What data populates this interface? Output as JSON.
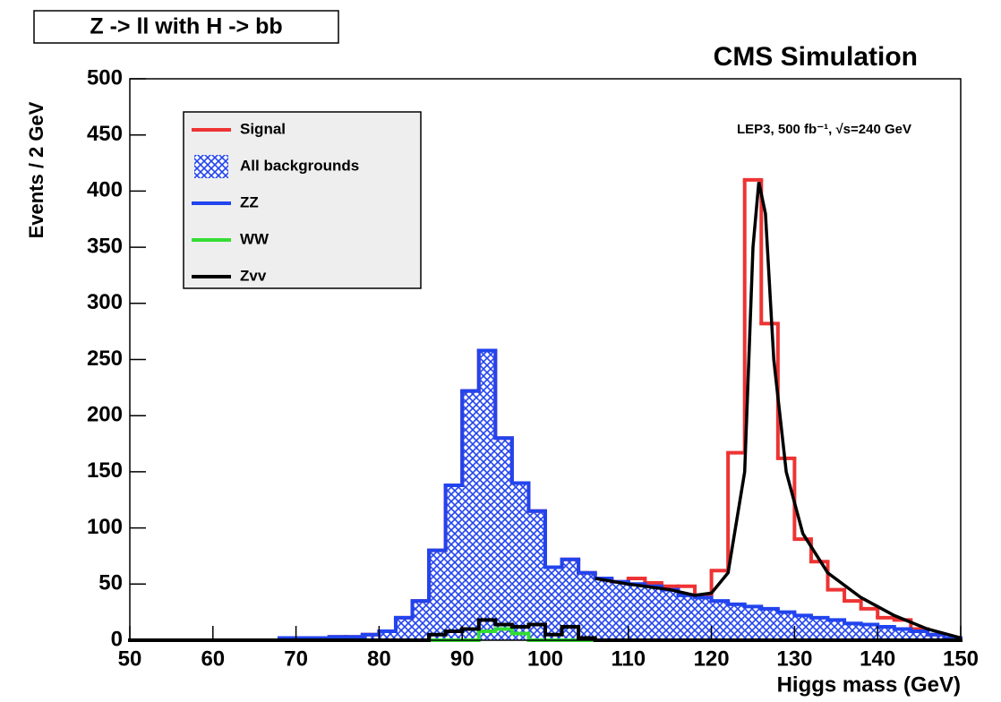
{
  "chart_data": {
    "type": "histogram",
    "title": "Z -> ll with H -> bb",
    "subtitle": "CMS Simulation",
    "annotation": "LEP3, 500 fb⁻¹, √s=240 GeV",
    "xlabel": "Higgs mass (GeV)",
    "ylabel": "Events / 2 GeV",
    "xlim": [
      50,
      150
    ],
    "ylim": [
      0,
      500
    ],
    "xticks": [
      50,
      60,
      70,
      80,
      90,
      100,
      110,
      120,
      130,
      140,
      150
    ],
    "yticks": [
      0,
      50,
      100,
      150,
      200,
      250,
      300,
      350,
      400,
      450,
      500
    ],
    "legend": "top-left",
    "bins": [
      50,
      52,
      54,
      56,
      58,
      60,
      62,
      64,
      66,
      68,
      70,
      72,
      74,
      76,
      78,
      80,
      82,
      84,
      86,
      88,
      90,
      92,
      94,
      96,
      98,
      100,
      102,
      104,
      106,
      108,
      110,
      112,
      114,
      116,
      118,
      120,
      122,
      124,
      126,
      128,
      130,
      132,
      134,
      136,
      138,
      140,
      142,
      144,
      146,
      148,
      150
    ],
    "series": [
      {
        "name": "Signal",
        "color": "#ee3333",
        "style": "step",
        "values": [
          0,
          0,
          0,
          0,
          0,
          0,
          0,
          0,
          0,
          0,
          0,
          0,
          0,
          0,
          0,
          0,
          0,
          0,
          0,
          0,
          0,
          0,
          0,
          0,
          0,
          0,
          0,
          0,
          0,
          0,
          5,
          3,
          3,
          8,
          2,
          27,
          135,
          380,
          254,
          137,
          68,
          50,
          27,
          20,
          14,
          8,
          8,
          2,
          0,
          0
        ]
      },
      {
        "name": "All backgrounds",
        "color": "#2244ee",
        "style": "hatch",
        "values": [
          0,
          0,
          0,
          0,
          0,
          0,
          0,
          0,
          0,
          2,
          2,
          2,
          3,
          3,
          5,
          8,
          20,
          35,
          80,
          138,
          222,
          258,
          180,
          140,
          115,
          65,
          72,
          60,
          55,
          52,
          50,
          48,
          45,
          40,
          38,
          35,
          32,
          30,
          28,
          25,
          22,
          20,
          18,
          15,
          14,
          12,
          10,
          8,
          5,
          2
        ]
      },
      {
        "name": "ZZ",
        "color": "#2244ee",
        "style": "step",
        "values": [
          0,
          0,
          0,
          0,
          0,
          0,
          0,
          0,
          0,
          2,
          2,
          2,
          3,
          3,
          5,
          8,
          20,
          35,
          80,
          138,
          222,
          258,
          180,
          140,
          115,
          65,
          72,
          60,
          55,
          52,
          50,
          48,
          45,
          40,
          38,
          35,
          32,
          30,
          28,
          25,
          22,
          20,
          18,
          15,
          14,
          12,
          10,
          8,
          5,
          2
        ]
      },
      {
        "name": "WW",
        "color": "#33dd33",
        "style": "step",
        "values": [
          0,
          0,
          0,
          0,
          0,
          0,
          0,
          0,
          0,
          0,
          0,
          0,
          0,
          0,
          0,
          0,
          0,
          0,
          0,
          0,
          0,
          8,
          10,
          6,
          0,
          0,
          0,
          0,
          0,
          0,
          0,
          0,
          0,
          0,
          0,
          0,
          0,
          0,
          0,
          0,
          0,
          0,
          0,
          0,
          0,
          0,
          0,
          0,
          0,
          0
        ]
      },
      {
        "name": "Zvv",
        "color": "#000000",
        "style": "step",
        "values": [
          0,
          0,
          0,
          0,
          0,
          0,
          0,
          0,
          0,
          0,
          0,
          0,
          0,
          0,
          0,
          0,
          0,
          0,
          5,
          8,
          10,
          18,
          14,
          12,
          14,
          5,
          12,
          2,
          0,
          0,
          0,
          0,
          0,
          0,
          0,
          0,
          0,
          0,
          0,
          0,
          0,
          0,
          0,
          0,
          0,
          0,
          0,
          0,
          0,
          0
        ]
      }
    ],
    "fit": {
      "color": "#000000",
      "x": [
        106,
        110,
        115,
        118,
        120,
        122,
        124,
        125,
        125.7,
        126.5,
        127.5,
        129,
        131,
        134,
        138,
        142,
        146,
        150
      ],
      "values": [
        55,
        50,
        45,
        40,
        42,
        60,
        150,
        350,
        408,
        380,
        250,
        150,
        95,
        60,
        38,
        22,
        10,
        2
      ]
    }
  }
}
